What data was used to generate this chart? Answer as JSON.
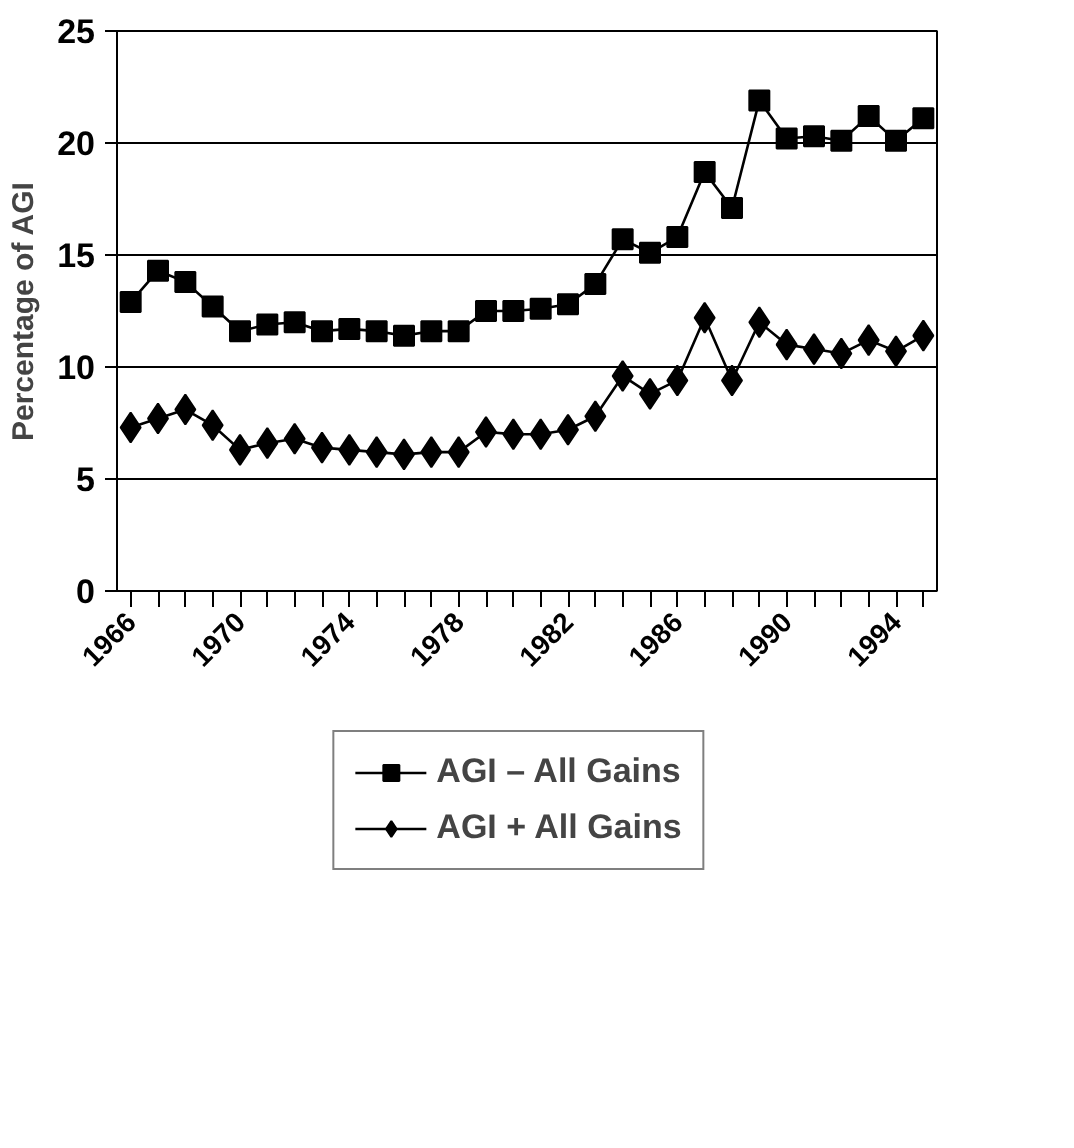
{
  "chart_data": {
    "type": "line",
    "ylabel": "Percentage of AGI",
    "x": [
      1966,
      1967,
      1968,
      1969,
      1970,
      1971,
      1972,
      1973,
      1974,
      1975,
      1976,
      1977,
      1978,
      1979,
      1980,
      1981,
      1982,
      1983,
      1984,
      1985,
      1986,
      1987,
      1988,
      1989,
      1990,
      1991,
      1992,
      1993,
      1994,
      1995
    ],
    "xlim": [
      1965.5,
      1995.5
    ],
    "xticks": [
      1966,
      {
        "value": 1967,
        "label": null
      },
      {
        "value": 1968,
        "label": null
      },
      {
        "value": 1969,
        "label": null
      },
      1970,
      {
        "value": 1971,
        "label": null
      },
      {
        "value": 1972,
        "label": null
      },
      {
        "value": 1973,
        "label": null
      },
      1974,
      {
        "value": 1975,
        "label": null
      },
      {
        "value": 1976,
        "label": null
      },
      {
        "value": 1977,
        "label": null
      },
      1978,
      {
        "value": 1979,
        "label": null
      },
      {
        "value": 1980,
        "label": null
      },
      {
        "value": 1981,
        "label": null
      },
      1982,
      {
        "value": 1983,
        "label": null
      },
      {
        "value": 1984,
        "label": null
      },
      {
        "value": 1985,
        "label": null
      },
      1986,
      {
        "value": 1987,
        "label": null
      },
      {
        "value": 1988,
        "label": null
      },
      {
        "value": 1989,
        "label": null
      },
      1990,
      {
        "value": 1991,
        "label": null
      },
      {
        "value": 1992,
        "label": null
      },
      {
        "value": 1993,
        "label": null
      },
      1994,
      {
        "value": 1995,
        "label": null
      }
    ],
    "ylim": [
      0,
      25
    ],
    "yticks": [
      0,
      5,
      10,
      15,
      20,
      25
    ],
    "grid": "y",
    "legend": "bottom",
    "series": [
      {
        "name": "AGI – All Gains",
        "color": "#000000",
        "marker": "square",
        "values": [
          12.9,
          14.3,
          13.8,
          12.7,
          11.6,
          11.9,
          12.0,
          11.6,
          11.7,
          11.6,
          11.4,
          11.6,
          11.6,
          12.5,
          12.5,
          12.6,
          12.8,
          13.7,
          15.7,
          15.1,
          15.8,
          18.7,
          17.1,
          21.9,
          20.2,
          20.3,
          20.1,
          21.2,
          20.1,
          21.1
        ]
      },
      {
        "name": "AGI + All Gains",
        "color": "#000000",
        "marker": "diamond",
        "values": [
          7.3,
          7.7,
          8.1,
          7.4,
          6.3,
          6.6,
          6.8,
          6.4,
          6.3,
          6.2,
          6.1,
          6.2,
          6.2,
          7.1,
          7.0,
          7.0,
          7.2,
          7.8,
          9.6,
          8.8,
          9.4,
          12.2,
          9.4,
          12.0,
          11.0,
          10.8,
          10.6,
          11.2,
          10.7,
          11.4
        ]
      }
    ]
  }
}
